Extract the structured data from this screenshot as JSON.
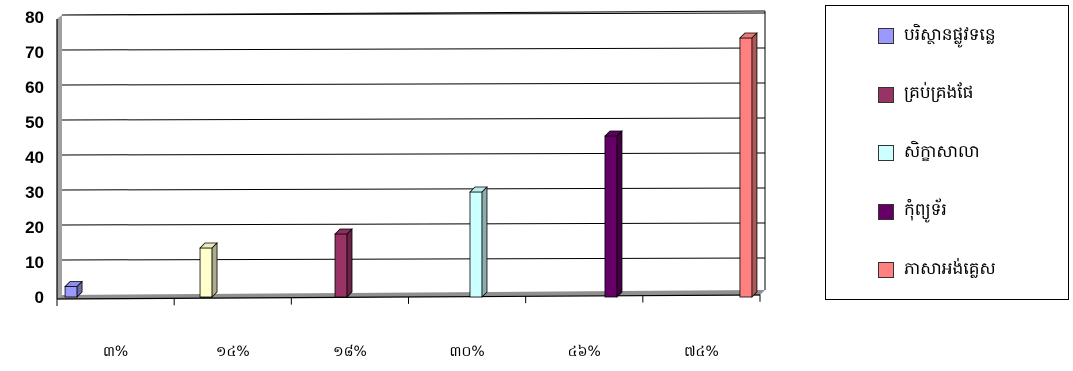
{
  "chart_data": {
    "type": "bar",
    "categories": [
      "៣%",
      "១៤%",
      "១៨%",
      "៣០%",
      "៤៦%",
      "៧៤%"
    ],
    "yticks": [
      "0",
      "10",
      "20",
      "30",
      "40",
      "50",
      "60",
      "70",
      "80"
    ],
    "ylim": [
      0,
      80
    ],
    "grid": true,
    "legend_position": "right",
    "series": [
      {
        "name": "បរិស្ថានផ្លូវទន្លេ",
        "color": "#9999ff",
        "category_index": 0,
        "value": 3
      },
      {
        "name": "",
        "color": "#ffffcc",
        "category_index": 1,
        "value": 14
      },
      {
        "name": "គ្រប់គ្រងផែ",
        "color": "#993366",
        "category_index": 2,
        "value": 18
      },
      {
        "name": "សិក្ខាសាលា",
        "color": "#ccffff",
        "category_index": 3,
        "value": 30
      },
      {
        "name": "កុំព្យូទ័រ",
        "color": "#660066",
        "category_index": 4,
        "value": 46
      },
      {
        "name": "ភាសាអង់គ្លេស",
        "color": "#ff8080",
        "category_index": 5,
        "value": 74
      }
    ]
  }
}
